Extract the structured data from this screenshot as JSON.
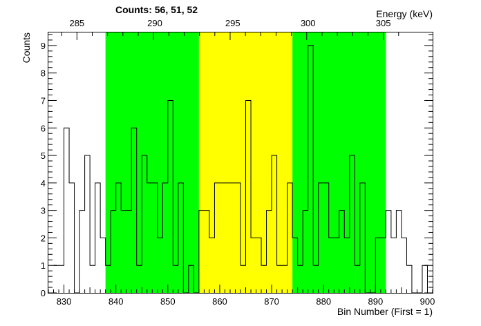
{
  "chart_data": {
    "type": "step-histogram",
    "title": "Counts:   56,   51,   52",
    "xlabel": "Bin Number (First = 1)",
    "ylabel": "Counts",
    "x2label": "Energy (keV)",
    "xlim": [
      827,
      901
    ],
    "ylim": [
      0,
      9.5
    ],
    "x_ticks": [
      830,
      840,
      850,
      860,
      870,
      880,
      890,
      900
    ],
    "y_ticks": [
      0,
      1,
      2,
      3,
      4,
      5,
      6,
      7,
      8,
      9
    ],
    "energy_ticks": [
      {
        "label": "285",
        "bin": 832.5
      },
      {
        "label": "290",
        "bin": 847.5
      },
      {
        "label": "295",
        "bin": 862.5
      },
      {
        "label": "300",
        "bin": 877.0
      },
      {
        "label": "305",
        "bin": 891.5
      }
    ],
    "regions": [
      {
        "name": "left background",
        "from": 838,
        "to": 856,
        "color": "#00ff00"
      },
      {
        "name": "peak",
        "from": 856,
        "to": 874,
        "color": "#ffff00"
      },
      {
        "name": "right background",
        "from": 874,
        "to": 892,
        "color": "#00ff00"
      }
    ],
    "first_bin": 828,
    "values": [
      1,
      1,
      6,
      4,
      0,
      3,
      5,
      1,
      4,
      2,
      1,
      3,
      4,
      3,
      3,
      6,
      1,
      5,
      4,
      4,
      2,
      4,
      7,
      1,
      4,
      0,
      1,
      0,
      3,
      3,
      2,
      4,
      4,
      4,
      4,
      4,
      1,
      7,
      2,
      2,
      1,
      3,
      5,
      1,
      1,
      4,
      2,
      1,
      3,
      9,
      1,
      4,
      4,
      2,
      2,
      3,
      2,
      5,
      1,
      4,
      0,
      0,
      2,
      2,
      3,
      2,
      3,
      2,
      1,
      0,
      0,
      1,
      0
    ]
  }
}
